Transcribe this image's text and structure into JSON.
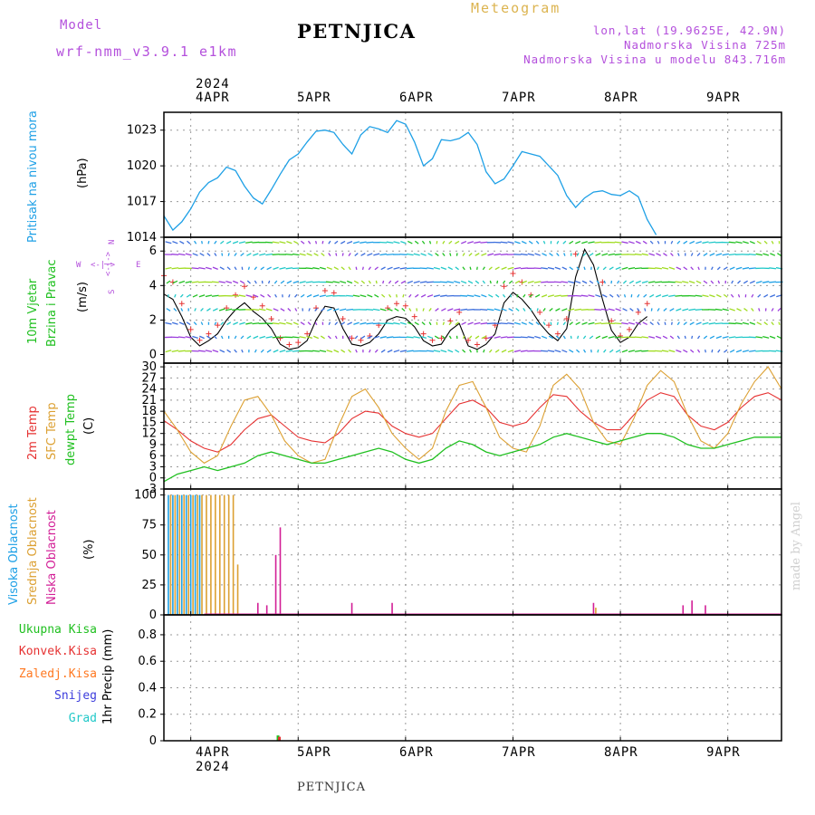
{
  "header": {
    "model_label": "Model",
    "model_name": "wrf-nmm_v3.9.1 e1km",
    "station": "PETNJICA",
    "meteogram_label": "Meteogram",
    "coords": "lon,lat (19.9625E, 42.9N)",
    "elevation": "Nadmorska Visina 725m",
    "model_elevation": "Nadmorska Visina u modelu 843.716m",
    "footer_station": "PETNJICA",
    "credit": "made by Angel"
  },
  "colors": {
    "pressure": "#1ea0e6",
    "temp2m": "#e63232",
    "sfc_temp": "#dca032",
    "dewpt": "#20c020",
    "high_cloud": "#1ea0e6",
    "mid_cloud": "#dca032",
    "low_cloud": "#d21e96",
    "total_precip": "#20c020",
    "conv_precip": "#e63232",
    "frz_precip": "#ff7820",
    "snow": "#3c3cdc",
    "graupel": "#20c8c8",
    "header_purple": "#b450dc",
    "header_orange": "#dcb450"
  },
  "time_axis": {
    "year": "2024",
    "days": [
      "4APR",
      "5APR",
      "6APR",
      "7APR",
      "8APR",
      "9APR"
    ],
    "start_hour": -6,
    "end_hour": 132
  },
  "panels": {
    "pressure": {
      "title": "Pritisak na nivou mora",
      "unit": "(hPa)",
      "ticks": [
        "1014",
        "1017",
        "1020",
        "1023"
      ]
    },
    "wind": {
      "title_line1": "10m Vjetar",
      "title_line2": "Brzina i Pravac",
      "unit": "(m/s)",
      "ticks": [
        "0",
        "2",
        "4",
        "6"
      ],
      "compass_n": "N",
      "compass_w": "W",
      "compass_e": "E",
      "compass_s": "S",
      "compass_arrows": "<-|->"
    },
    "temp": {
      "title_2m": "2m Temp",
      "title_sfc": "SFC Temp",
      "title_dew": "dewpt Temp",
      "unit": "(C)",
      "ticks": [
        "-3",
        "0",
        "3",
        "6",
        "9",
        "12",
        "15",
        "18",
        "21",
        "24",
        "27",
        "30"
      ]
    },
    "cloud": {
      "title_high": "Visoka Oblacnost",
      "title_mid": "Srednja Oblacnost",
      "title_low": "Niska Oblacnost",
      "unit": "(%)",
      "ticks": [
        "0",
        "25",
        "50",
        "75",
        "100"
      ]
    },
    "precip": {
      "legend": [
        "Ukupna Kisa",
        "Konvek.Kisa",
        "Zaledj.Kisa",
        "Snijeg",
        "Grad"
      ],
      "unit": "1hr Precip (mm)",
      "ticks": [
        "0",
        "0.2",
        "0.4",
        "0.6",
        "0.8"
      ]
    }
  },
  "chart_data": [
    {
      "type": "line",
      "title": "Pritisak na nivou mora",
      "ylabel": "(hPa)",
      "ylim": [
        1014,
        1024.5
      ],
      "series": [
        {
          "name": "Pritisak na nivou mora",
          "x": [
            -6,
            -4,
            -2,
            0,
            2,
            4,
            6,
            8,
            10,
            12,
            14,
            16,
            18,
            20,
            22,
            24,
            26,
            28,
            30,
            32,
            34,
            36,
            38,
            40,
            42,
            44,
            46,
            48,
            50,
            52,
            54,
            56,
            58,
            60,
            62,
            64,
            66,
            68,
            70,
            72,
            74,
            76,
            78,
            80,
            82,
            84,
            86,
            88,
            90,
            92,
            94,
            96,
            98,
            100,
            102,
            104,
            106,
            108,
            110,
            112,
            114,
            116,
            118,
            120,
            122,
            124,
            126,
            128,
            130,
            132
          ],
          "values": [
            1015.8,
            1014.6,
            1015.3,
            1016.4,
            1017.8,
            1018.6,
            1019.0,
            1019.9,
            1019.6,
            1018.3,
            1017.3,
            1016.8,
            1018.0,
            1019.3,
            1020.5,
            1021.0,
            1022.0,
            1022.9,
            1023.0,
            1022.8,
            1021.8,
            1021.0,
            1022.6,
            1023.3,
            1023.1,
            1022.8,
            1023.8,
            1023.5,
            1022.0,
            1020.0,
            1020.6,
            1022.2,
            1022.1,
            1022.3,
            1022.8,
            1021.8,
            1019.5,
            1018.5,
            1018.9,
            1020.0,
            1021.2,
            1021.0,
            1020.8,
            1020.0,
            1019.2,
            1017.5,
            1016.5,
            1017.3,
            1017.8,
            1017.9,
            1017.6,
            1017.5,
            1017.9,
            1017.4,
            1015.5,
            1014.2,
            1014.0,
            1014.0,
            1014.0,
            1014.0,
            1014.0,
            1014.0,
            1014.0,
            1014.0,
            1014.0,
            1014.0,
            1014.0,
            1014.0,
            1014.0,
            1014.0
          ]
        }
      ]
    },
    {
      "type": "line",
      "title": "10m Vjetar Brzina i Pravac",
      "ylabel": "(m/s)",
      "ylim": [
        -0.5,
        6.8
      ],
      "series": [
        {
          "name": "10m Vjetar",
          "x": [
            -6,
            -4,
            -2,
            0,
            2,
            4,
            6,
            8,
            10,
            12,
            14,
            16,
            18,
            20,
            22,
            24,
            26,
            28,
            30,
            32,
            34,
            36,
            38,
            40,
            42,
            44,
            46,
            48,
            50,
            52,
            54,
            56,
            58,
            60,
            62,
            64,
            66,
            68,
            70,
            72,
            74,
            76,
            78,
            80,
            82,
            84,
            86,
            88,
            90,
            92,
            94,
            96,
            98,
            100,
            102,
            104,
            106,
            108,
            110,
            112,
            114,
            116,
            118,
            120,
            122,
            124,
            126,
            128,
            130,
            132
          ],
          "values": [
            3.5,
            3.2,
            2.2,
            1.0,
            0.5,
            0.8,
            1.2,
            2.0,
            2.6,
            3.0,
            2.5,
            2.1,
            1.5,
            0.6,
            0.3,
            0.4,
            0.8,
            2.0,
            2.8,
            2.7,
            1.5,
            0.6,
            0.5,
            0.7,
            1.2,
            2.0,
            2.2,
            2.1,
            1.6,
            0.8,
            0.5,
            0.6,
            1.4,
            1.8,
            0.5,
            0.3,
            0.6,
            1.2,
            3.0,
            3.6,
            3.2,
            2.6,
            1.8,
            1.2,
            0.8,
            1.5,
            4.5,
            6.1,
            5.2,
            3.2,
            1.4,
            0.7,
            1.0,
            1.8,
            2.2,
            1.8,
            1.8,
            1.8,
            1.8,
            1.8,
            1.8,
            1.8,
            1.8,
            1.8,
            1.8,
            1.8,
            1.8,
            1.8,
            1.8,
            1.8
          ]
        }
      ]
    },
    {
      "type": "line",
      "title": "2m Temp / SFC Temp / dewpt Temp",
      "ylabel": "(C)",
      "ylim": [
        -3,
        31
      ],
      "series": [
        {
          "name": "2m Temp",
          "x": [
            -6,
            -3,
            0,
            3,
            6,
            9,
            12,
            15,
            18,
            21,
            24,
            27,
            30,
            33,
            36,
            39,
            42,
            45,
            48,
            51,
            54,
            57,
            60,
            63,
            66,
            69,
            72,
            75,
            78,
            81,
            84,
            87,
            90,
            93,
            96,
            99,
            102,
            105,
            108,
            111,
            114,
            117,
            120,
            123,
            126,
            129,
            132
          ],
          "values": [
            15.5,
            13,
            10,
            8,
            7,
            9,
            13,
            16,
            17,
            14,
            11,
            10,
            9.5,
            12,
            16,
            18,
            17.5,
            14,
            12,
            11,
            12,
            16,
            20,
            21,
            19,
            15,
            14,
            15,
            19,
            22.5,
            22,
            18,
            15,
            13,
            13,
            17,
            21,
            23,
            22,
            17,
            14,
            13,
            15,
            19,
            22,
            23,
            21
          ]
        },
        {
          "name": "SFC Temp",
          "x": [
            -6,
            -3,
            0,
            3,
            6,
            9,
            12,
            15,
            18,
            21,
            24,
            27,
            30,
            33,
            36,
            39,
            42,
            45,
            48,
            51,
            54,
            57,
            60,
            63,
            66,
            69,
            72,
            75,
            78,
            81,
            84,
            87,
            90,
            93,
            96,
            99,
            102,
            105,
            108,
            111,
            114,
            117,
            120,
            123,
            126,
            129,
            132
          ],
          "values": [
            18,
            13,
            7,
            4,
            6,
            14,
            21,
            22,
            17,
            10,
            6,
            4,
            5,
            14,
            22,
            24,
            19,
            12,
            8,
            5,
            8,
            18,
            25,
            26,
            19,
            11,
            8,
            7,
            14,
            25,
            28,
            24,
            15,
            10,
            9,
            16,
            25,
            29,
            26,
            17,
            10,
            8,
            12,
            20,
            26,
            30,
            24
          ]
        },
        {
          "name": "dewpt Temp",
          "x": [
            -6,
            -3,
            0,
            3,
            6,
            9,
            12,
            15,
            18,
            21,
            24,
            27,
            30,
            33,
            36,
            39,
            42,
            45,
            48,
            51,
            54,
            57,
            60,
            63,
            66,
            69,
            72,
            75,
            78,
            81,
            84,
            87,
            90,
            93,
            96,
            99,
            102,
            105,
            108,
            111,
            114,
            117,
            120,
            123,
            126,
            129,
            132
          ],
          "values": [
            -1,
            1,
            2,
            3,
            2,
            3,
            4,
            6,
            7,
            6,
            5,
            4,
            4,
            5,
            6,
            7,
            8,
            7,
            5,
            4,
            5,
            8,
            10,
            9,
            7,
            6,
            7,
            8,
            9,
            11,
            12,
            11,
            10,
            9,
            10,
            11,
            12,
            12,
            11,
            9,
            8,
            8,
            9,
            10,
            11,
            11,
            11
          ]
        }
      ]
    },
    {
      "type": "bar",
      "title": "Visoka / Srednja / Niska Oblacnost",
      "ylabel": "(%)",
      "ylim": [
        0,
        105
      ],
      "series": [
        {
          "name": "Visoka Oblacnost",
          "x": [
            -5,
            -4,
            -3,
            -2,
            -1,
            0,
            1,
            2
          ],
          "values": [
            100,
            100,
            100,
            100,
            100,
            100,
            100,
            100
          ]
        },
        {
          "name": "Srednja Oblacnost",
          "x": [
            -4.5,
            -3.5,
            -2.5,
            -1.5,
            -0.5,
            0.5,
            1.5,
            2.5,
            3.5,
            4.5,
            5.5,
            6.5,
            7.5,
            8.5,
            9.5,
            10.5,
            90.5
          ],
          "values": [
            100,
            100,
            100,
            100,
            100,
            100,
            100,
            100,
            100,
            100,
            100,
            100,
            100,
            100,
            100,
            42,
            6
          ]
        },
        {
          "name": "Niska Oblacnost",
          "x": [
            15,
            17,
            19,
            20,
            36,
            45,
            90,
            110,
            112,
            115
          ],
          "values": [
            10,
            8,
            50,
            73,
            10,
            10,
            10,
            8,
            12,
            8
          ]
        }
      ]
    },
    {
      "type": "bar",
      "title": "1hr Precip",
      "ylabel": "1hr Precip (mm)",
      "ylim": [
        0,
        0.95
      ],
      "series": [
        {
          "name": "Ukupna Kisa",
          "x": [
            19.5
          ],
          "values": [
            0.04
          ]
        },
        {
          "name": "Konvek.Kisa",
          "x": [
            19.8
          ],
          "values": [
            0.03
          ]
        }
      ]
    }
  ]
}
